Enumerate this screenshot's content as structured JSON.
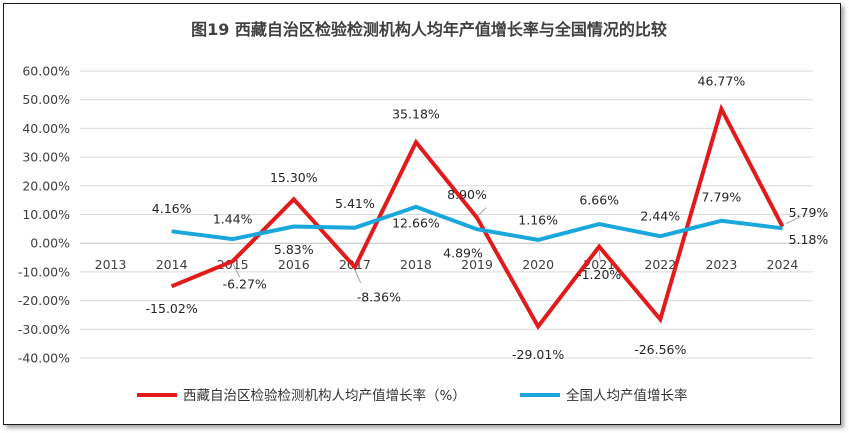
{
  "chart_data": {
    "type": "line",
    "title": "图19  西藏自治区检验检测机构人均年产值增长率与全国情况的比较",
    "categories": [
      "2013",
      "2014",
      "2015",
      "2016",
      "2017",
      "2018",
      "2019",
      "2020",
      "2021",
      "2022",
      "2023",
      "2024"
    ],
    "ylim": [
      -40,
      60
    ],
    "ytick_labels": [
      "60.00%",
      "50.00%",
      "40.00%",
      "30.00%",
      "20.00%",
      "10.00%",
      "0.00%",
      "-10.00%",
      "-20.00%",
      "-30.00%",
      "-40.00%"
    ],
    "ytick_values": [
      60,
      50,
      40,
      30,
      20,
      10,
      0,
      -10,
      -20,
      -30,
      -40
    ],
    "grid": true,
    "legend_position": "bottom",
    "series": [
      {
        "name": "西藏自治区检验检测机构人均产值增长率（%）",
        "color": "#e31a1c",
        "values": [
          null,
          -15.02,
          -6.27,
          15.3,
          -8.36,
          35.18,
          8.9,
          -29.01,
          -1.2,
          -26.56,
          46.77,
          5.79
        ],
        "labels": [
          "",
          "-15.02%",
          "-6.27%",
          "15.30%",
          "-8.36%",
          "35.18%",
          "8.90%",
          "-29.01%",
          "-1.20%",
          "-26.56%",
          "46.77%",
          "5.79%"
        ]
      },
      {
        "name": "全国人均产值增长率",
        "color": "#1aa7dc",
        "values": [
          null,
          4.16,
          1.44,
          5.83,
          5.41,
          12.66,
          4.89,
          1.16,
          6.66,
          2.44,
          7.79,
          5.18
        ],
        "labels": [
          "",
          "4.16%",
          "1.44%",
          "5.83%",
          "5.41%",
          "12.66%",
          "4.89%",
          "1.16%",
          "6.66%",
          "2.44%",
          "7.79%",
          "5.18%"
        ]
      }
    ]
  }
}
